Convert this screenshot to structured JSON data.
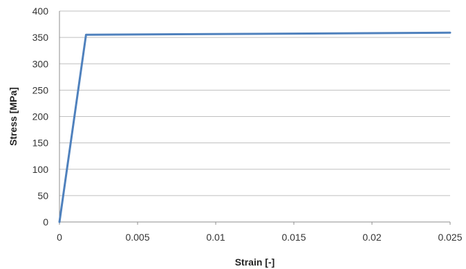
{
  "chart_data": {
    "type": "line",
    "title": "",
    "xlabel": "Strain [-]",
    "ylabel": "Stress [MPa]",
    "xlim": [
      0,
      0.025
    ],
    "ylim": [
      0,
      400
    ],
    "x_ticks": [
      "0",
      "0.005",
      "0.01",
      "0.015",
      "0.02",
      "0.025"
    ],
    "y_ticks": [
      "0",
      "50",
      "100",
      "150",
      "200",
      "250",
      "300",
      "350",
      "400"
    ],
    "grid": "horizontal",
    "legend": "none",
    "series": [
      {
        "color": "#4f81bd",
        "x": [
          0,
          0.0017,
          0.025
        ],
        "y": [
          0,
          355,
          359
        ]
      }
    ]
  }
}
